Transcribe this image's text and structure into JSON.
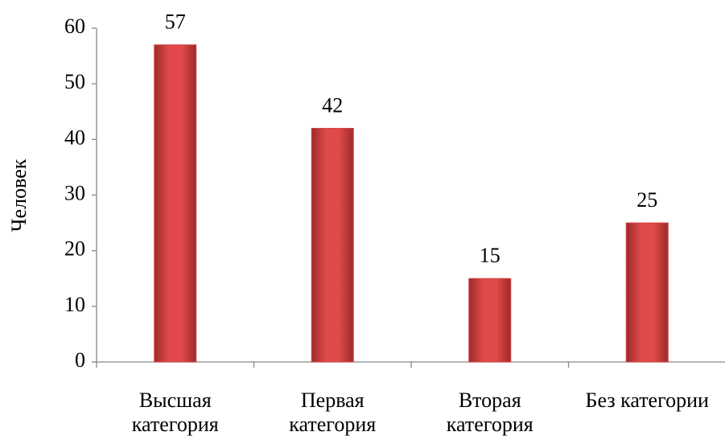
{
  "chart_data": {
    "type": "bar",
    "y_label": "Человек",
    "categories": [
      "Высшая категория",
      "Первая категория",
      "Вторая категория",
      "Без категории"
    ],
    "values": [
      57,
      42,
      15,
      25
    ],
    "color": "#d64545",
    "ylim": [
      0,
      60
    ],
    "yticks": [
      0,
      10,
      20,
      30,
      40,
      50,
      60
    ],
    "grid": false
  }
}
